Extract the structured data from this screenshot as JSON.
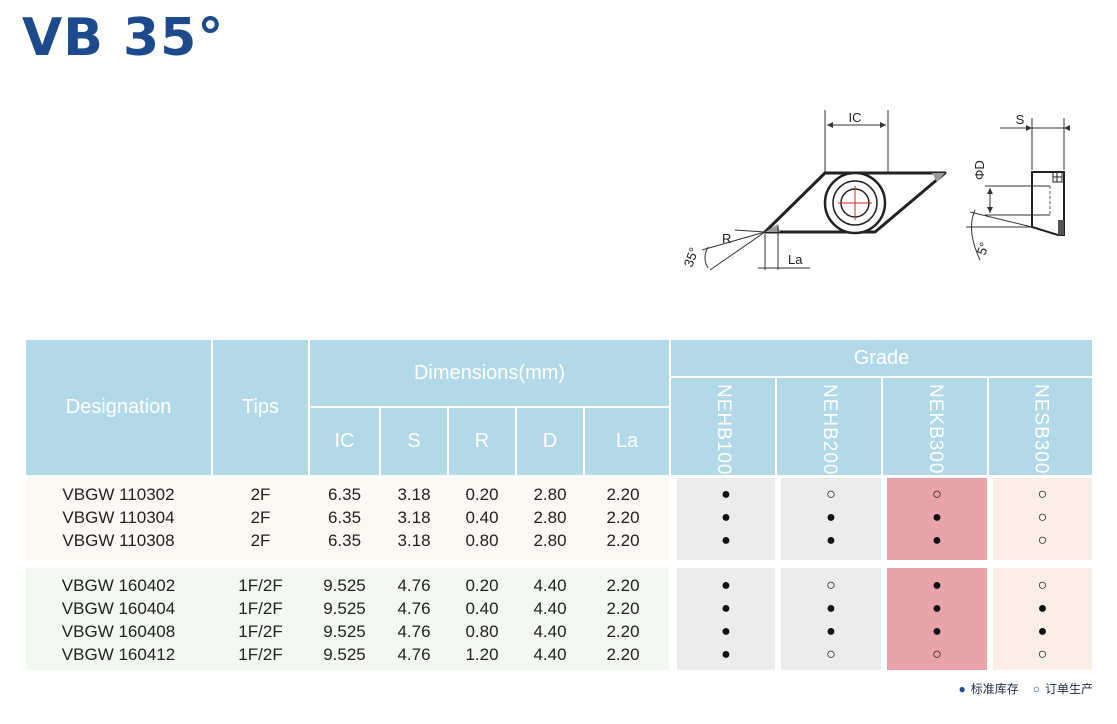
{
  "title": "VB 35°",
  "diagram": {
    "ic_label": "IC",
    "s_label": "S",
    "phi_d_label": "ΦD",
    "r_label": "R",
    "la_label": "La",
    "angle35_label": "35°",
    "angle5_label": "5°"
  },
  "table": {
    "headers": {
      "designation": "Designation",
      "tips": "Tips",
      "dimensions": "Dimensions(mm)",
      "grade": "Grade",
      "dims": [
        "IC",
        "S",
        "R",
        "D",
        "La"
      ],
      "grades": [
        "NEHB100",
        "NEHB200",
        "NEKB300",
        "NESB300"
      ]
    },
    "groups": [
      {
        "rows": [
          {
            "designation": "VBGW 110302",
            "tips": "2F",
            "dims": [
              "6.35",
              "3.18",
              "0.20",
              "2.80",
              "2.20"
            ],
            "grades": [
              "●",
              "○",
              "○",
              "○"
            ]
          },
          {
            "designation": "VBGW 110304",
            "tips": "2F",
            "dims": [
              "6.35",
              "3.18",
              "0.40",
              "2.80",
              "2.20"
            ],
            "grades": [
              "●",
              "●",
              "●",
              "○"
            ]
          },
          {
            "designation": "VBGW 110308",
            "tips": "2F",
            "dims": [
              "6.35",
              "3.18",
              "0.80",
              "2.80",
              "2.20"
            ],
            "grades": [
              "●",
              "●",
              "●",
              "○"
            ]
          }
        ]
      },
      {
        "rows": [
          {
            "designation": "VBGW 160402",
            "tips": "1F/2F",
            "dims": [
              "9.525",
              "4.76",
              "0.20",
              "4.40",
              "2.20"
            ],
            "grades": [
              "●",
              "○",
              "●",
              "○"
            ]
          },
          {
            "designation": "VBGW 160404",
            "tips": "1F/2F",
            "dims": [
              "9.525",
              "4.76",
              "0.40",
              "4.40",
              "2.20"
            ],
            "grades": [
              "●",
              "●",
              "●",
              "●"
            ]
          },
          {
            "designation": "VBGW 160408",
            "tips": "1F/2F",
            "dims": [
              "9.525",
              "4.76",
              "0.80",
              "4.40",
              "2.20"
            ],
            "grades": [
              "●",
              "●",
              "●",
              "●"
            ]
          },
          {
            "designation": "VBGW 160412",
            "tips": "1F/2F",
            "dims": [
              "9.525",
              "4.76",
              "1.20",
              "4.40",
              "2.20"
            ],
            "grades": [
              "●",
              "○",
              "○",
              "○"
            ]
          }
        ]
      }
    ]
  },
  "legend": {
    "filled_symbol": "●",
    "filled_label": "标准库存",
    "hollow_symbol": "○",
    "hollow_label": "订单生产"
  },
  "colors": {
    "title": "#1d4a8c",
    "header_bg": "#b3d8e8",
    "group1_bg": "#fcf9f4",
    "group2_bg": "#f3f8f3",
    "grade_gray": "#ececec",
    "grade_pink": "#e9a4ab",
    "grade_peach": "#fbeee6"
  }
}
